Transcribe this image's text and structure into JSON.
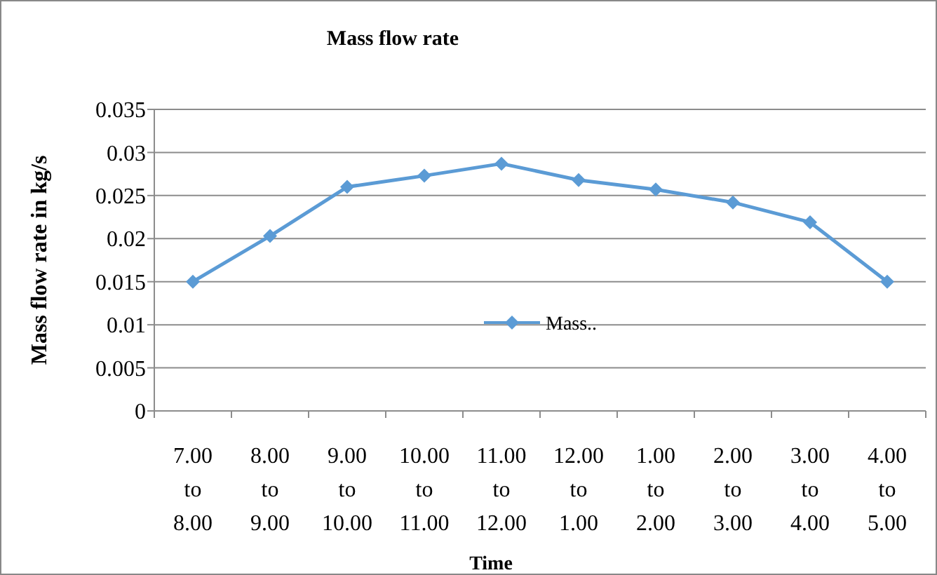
{
  "chart_data": {
    "type": "line",
    "title": "Mass flow rate",
    "xlabel": "Time",
    "ylabel": "Mass flow rate in kg/s",
    "categories": [
      "7.00 to 8.00",
      "8.00 to 9.00",
      "9.00 to 10.00",
      "10.00 to 11.00",
      "11.00 to 12.00",
      "12.00 to 1.00",
      "1.00 to 2.00",
      "2.00 to 3.00",
      "3.00 to 4.00",
      "4.00 to 5.00"
    ],
    "series": [
      {
        "name": "Mass..",
        "color": "#5b9bd5",
        "values": [
          0.015,
          0.0203,
          0.026,
          0.0273,
          0.0287,
          0.0268,
          0.0257,
          0.0242,
          0.0219,
          0.015
        ]
      }
    ],
    "ylim": [
      0,
      0.035
    ],
    "yticks": [
      0,
      0.005,
      0.01,
      0.015,
      0.02,
      0.025,
      0.03,
      0.035
    ],
    "grid": "y",
    "legend": "bottom",
    "marker": "diamond",
    "line_style": "solid"
  }
}
